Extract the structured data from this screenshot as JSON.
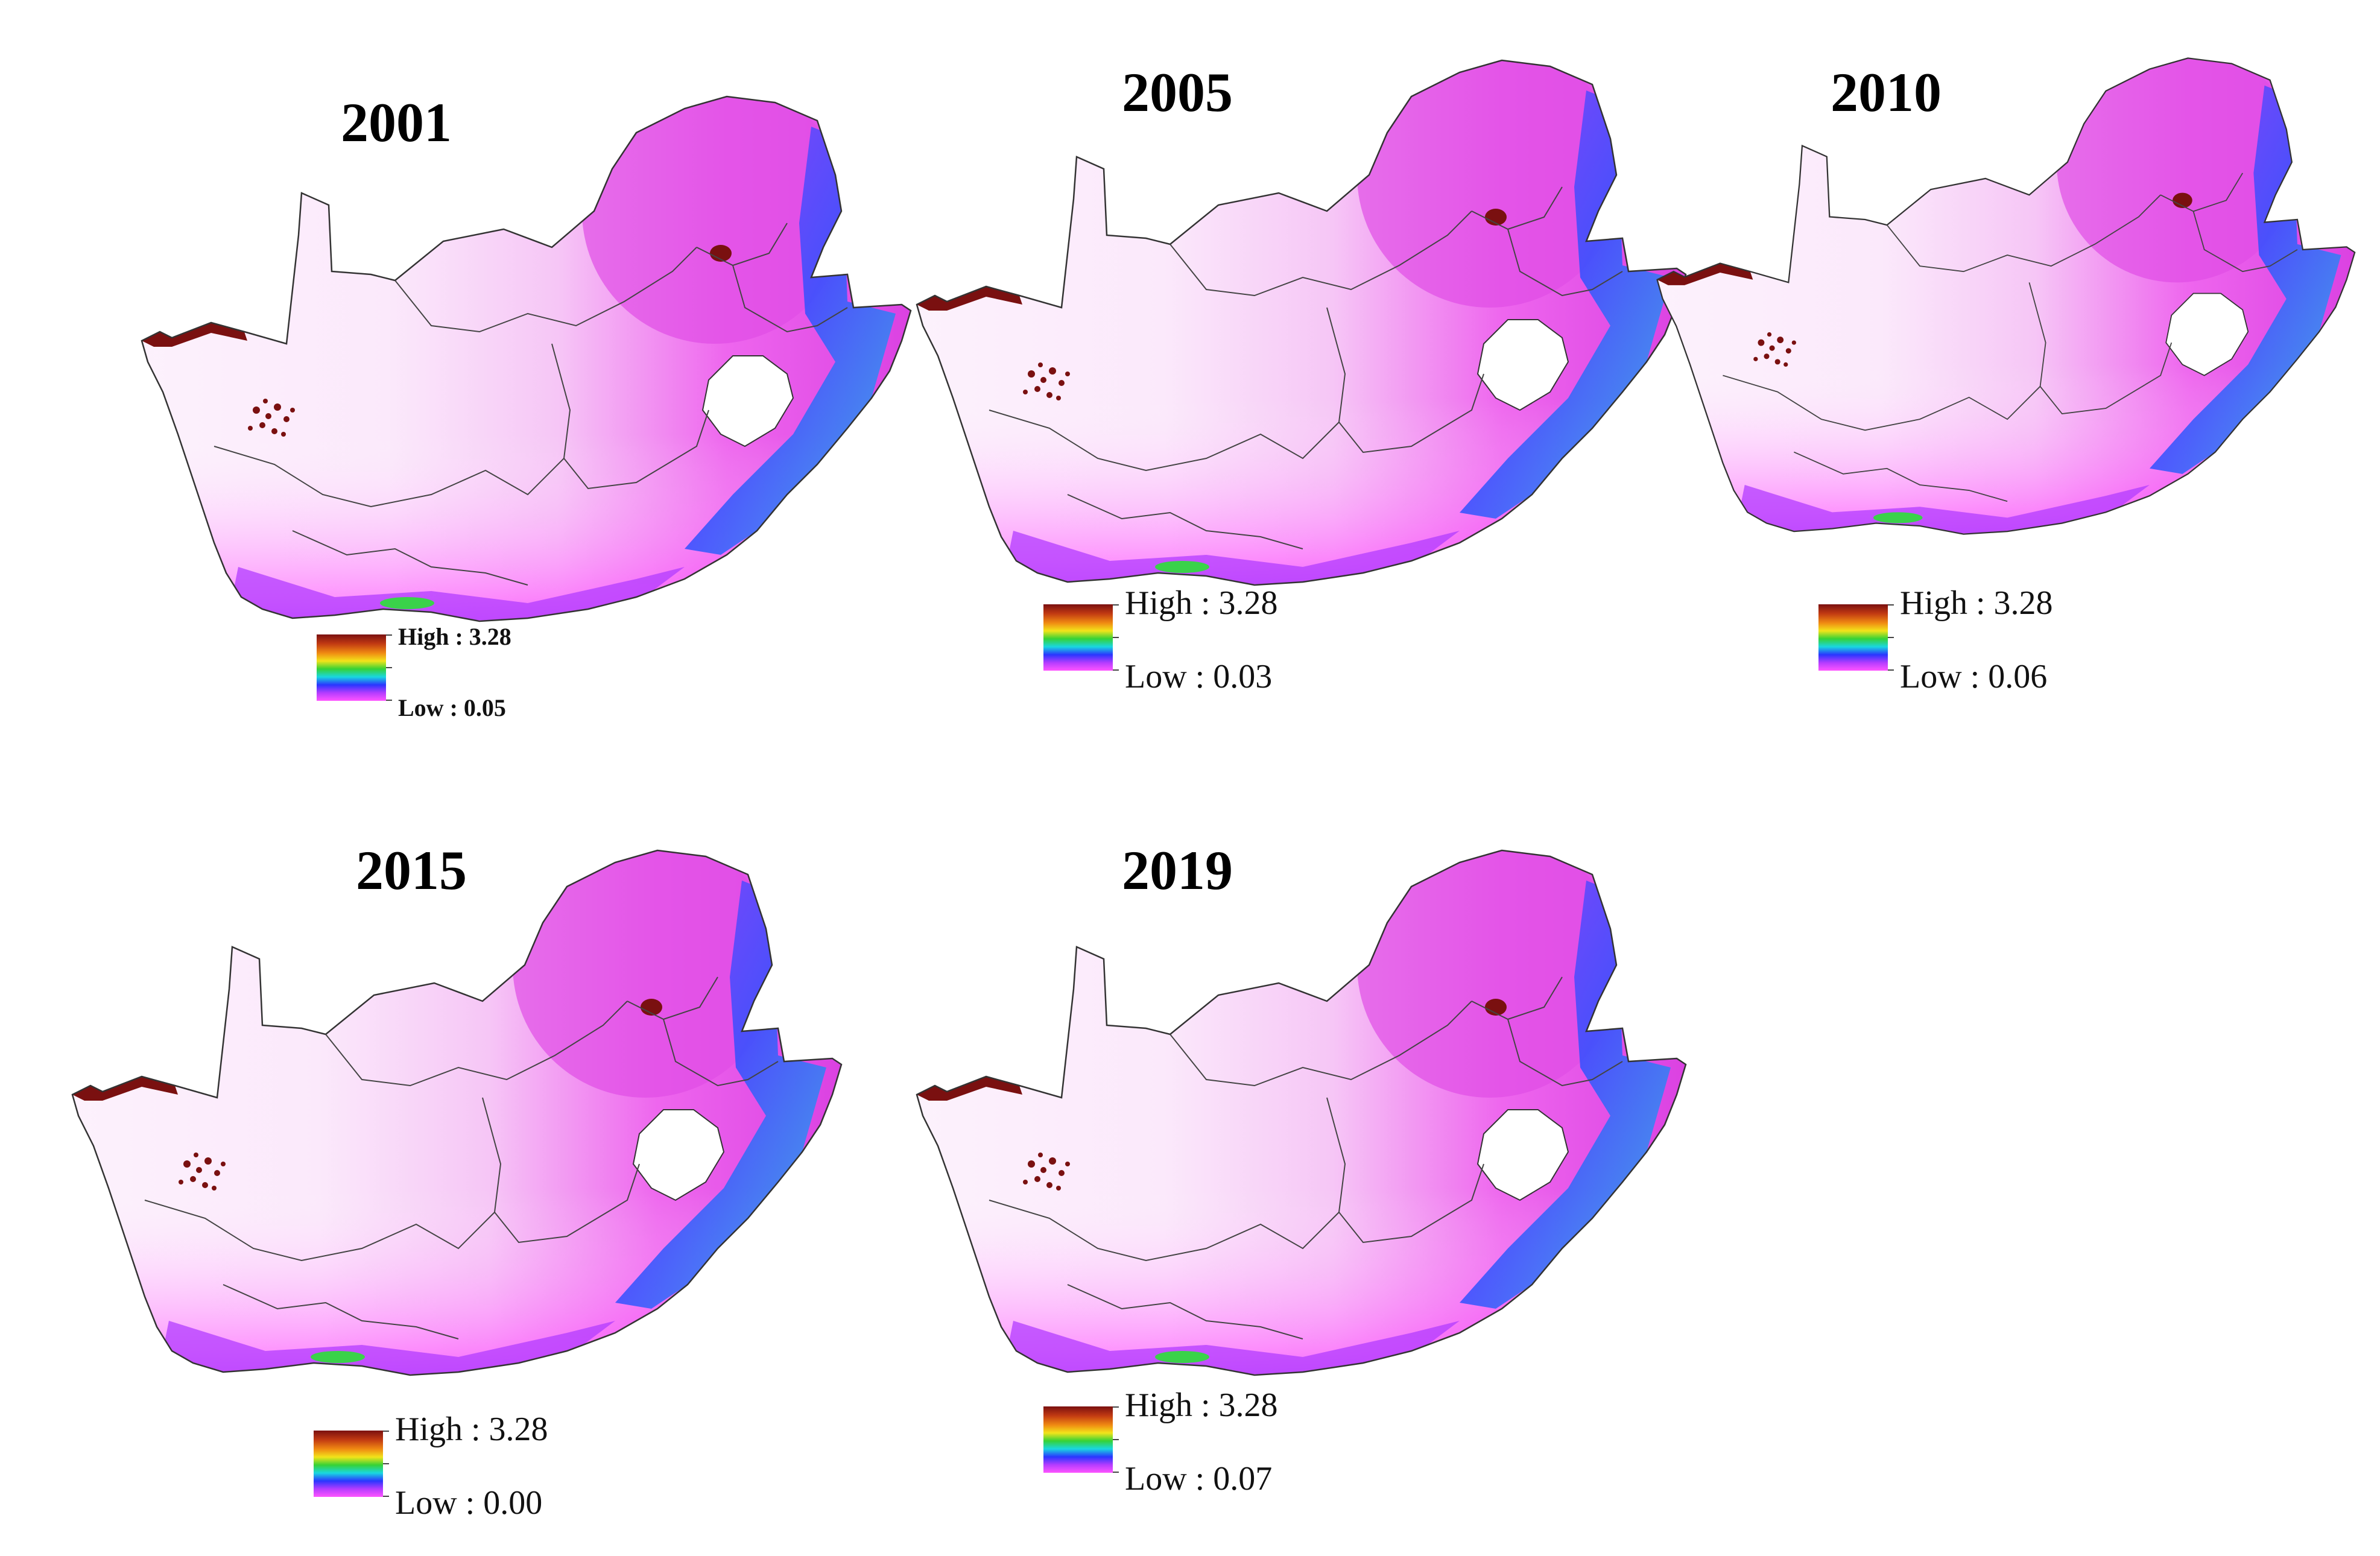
{
  "figure": {
    "panels": [
      {
        "year": "2001",
        "legend": {
          "high": "High : 3.28",
          "low": "Low : 0.05"
        }
      },
      {
        "year": "2005",
        "legend": {
          "high": "High : 3.28",
          "low": "Low : 0.03"
        }
      },
      {
        "year": "2010",
        "legend": {
          "high": "High : 3.28",
          "low": "Low : 0.06"
        }
      },
      {
        "year": "2015",
        "legend": {
          "high": "High : 3.28",
          "low": "Low : 0.00"
        }
      },
      {
        "year": "2019",
        "legend": {
          "high": "High : 3.28",
          "low": "Low : 0.07"
        }
      }
    ],
    "colors": {
      "high": "#7a1010",
      "mid_orange": "#f08a12",
      "mid_yellow": "#f2e41a",
      "mid_green": "#36d236",
      "mid_cyan": "#19d7e0",
      "mid_blue": "#2a36ff",
      "mid_purple": "#b43cff",
      "low": "#ff55ff",
      "background_land": "#fbe6fb",
      "border": "#333333"
    }
  }
}
